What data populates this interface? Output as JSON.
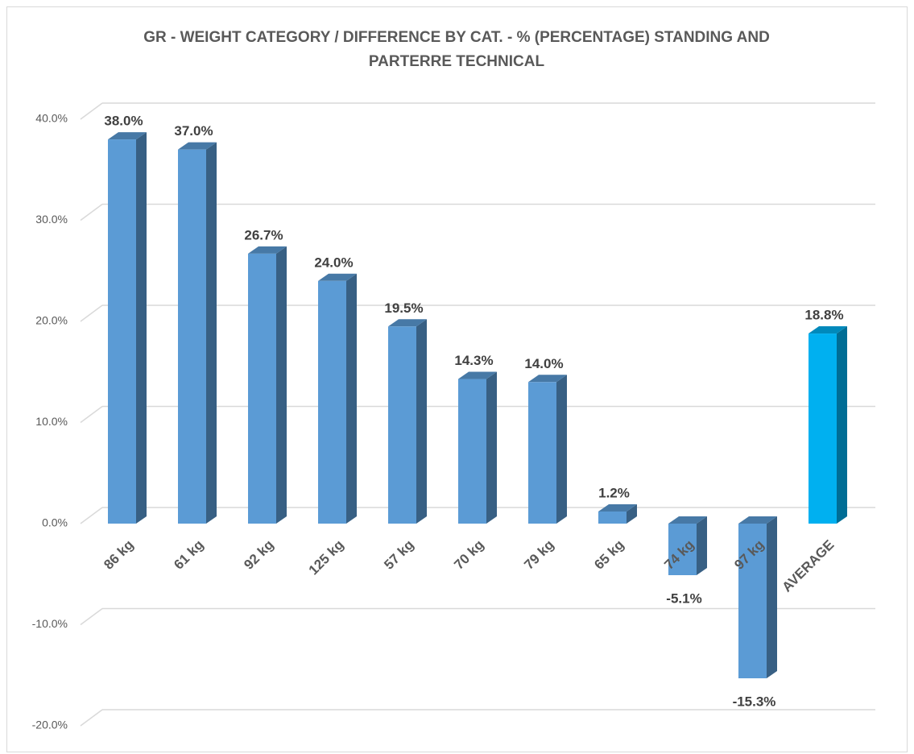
{
  "chart_data": {
    "type": "bar3d",
    "title": "GR - WEIGHT CATEGORY / DIFFERENCE BY CAT. - % (PERCENTAGE) STANDING AND PARTERRE TECHNICAL",
    "categories": [
      "86 kg",
      "61 kg",
      "92 kg",
      "125 kg",
      "57 kg",
      "70 kg",
      "79 kg",
      "65 kg",
      "74 kg",
      "97 kg",
      "AVERAGE"
    ],
    "values": [
      38.0,
      37.0,
      26.7,
      24.0,
      19.5,
      14.3,
      14.0,
      1.2,
      -5.1,
      -15.3,
      18.8
    ],
    "value_labels": [
      "38.0%",
      "37.0%",
      "26.7%",
      "24.0%",
      "19.5%",
      "14.3%",
      "14.0%",
      "1.2%",
      "-5.1%",
      "-15.3%",
      "18.8%"
    ],
    "colors": [
      "#5b9bd5",
      "#5b9bd5",
      "#5b9bd5",
      "#5b9bd5",
      "#5b9bd5",
      "#5b9bd5",
      "#5b9bd5",
      "#5b9bd5",
      "#5b9bd5",
      "#5b9bd5",
      "#00b0f0"
    ],
    "ylim": [
      -20,
      40
    ],
    "yticks": [
      {
        "value": -20,
        "label": "-20.0%"
      },
      {
        "value": -10,
        "label": "-10.0%"
      },
      {
        "value": 0,
        "label": "0.0%"
      },
      {
        "value": 10,
        "label": "10.0%"
      },
      {
        "value": 20,
        "label": "20.0%"
      },
      {
        "value": 30,
        "label": "30.0%"
      },
      {
        "value": 40,
        "label": "40.0%"
      }
    ],
    "grid": true
  }
}
